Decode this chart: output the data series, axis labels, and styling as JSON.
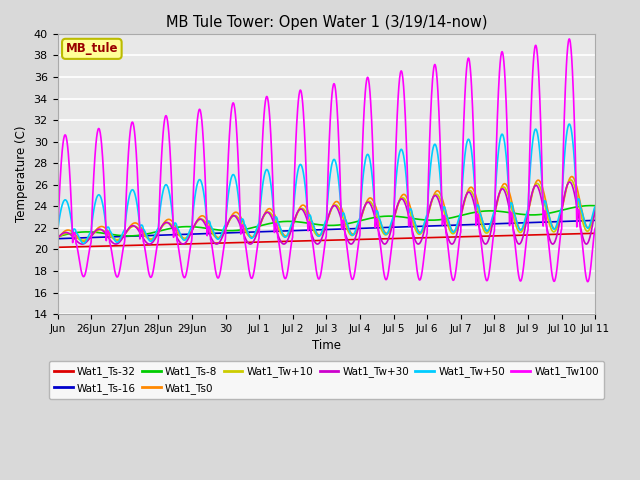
{
  "title": "MB Tule Tower: Open Water 1 (3/19/14-now)",
  "xlabel": "Time",
  "ylabel": "Temperature (C)",
  "ylim": [
    14,
    40
  ],
  "yticks": [
    14,
    16,
    18,
    20,
    22,
    24,
    26,
    28,
    30,
    32,
    34,
    36,
    38,
    40
  ],
  "bg_color": "#d9d9d9",
  "plot_bg_color": "#e8e8e8",
  "series": {
    "Wat1_Ts-32": {
      "color": "#dd0000",
      "lw": 1.2
    },
    "Wat1_Ts-16": {
      "color": "#0000cc",
      "lw": 1.2
    },
    "Wat1_Ts-8": {
      "color": "#00cc00",
      "lw": 1.2
    },
    "Wat1_Ts0": {
      "color": "#ff8800",
      "lw": 1.2
    },
    "Wat1_Tw+10": {
      "color": "#cccc00",
      "lw": 1.2
    },
    "Wat1_Tw+30": {
      "color": "#cc00cc",
      "lw": 1.2
    },
    "Wat1_Tw+50": {
      "color": "#00ccff",
      "lw": 1.2
    },
    "Wat1_Tw100": {
      "color": "#ff00ff",
      "lw": 1.2
    }
  },
  "n_points": 1600,
  "x_start": 0,
  "x_end": 16.0,
  "xtick_positions": [
    0,
    1,
    2,
    3,
    4,
    5,
    6,
    7,
    8,
    9,
    10,
    11,
    12,
    13,
    14,
    15,
    16
  ],
  "xtick_labels": [
    "Jun",
    "26Jun",
    "27Jun",
    "28Jun",
    "29Jun",
    "30",
    "Jul 1",
    "Jul 2",
    "Jul 3",
    "Jul 4",
    "Jul 5",
    "Jul 6",
    "Jul 7",
    "Jul 8",
    "Jul 9",
    "Jul 10",
    "Jul 11"
  ]
}
